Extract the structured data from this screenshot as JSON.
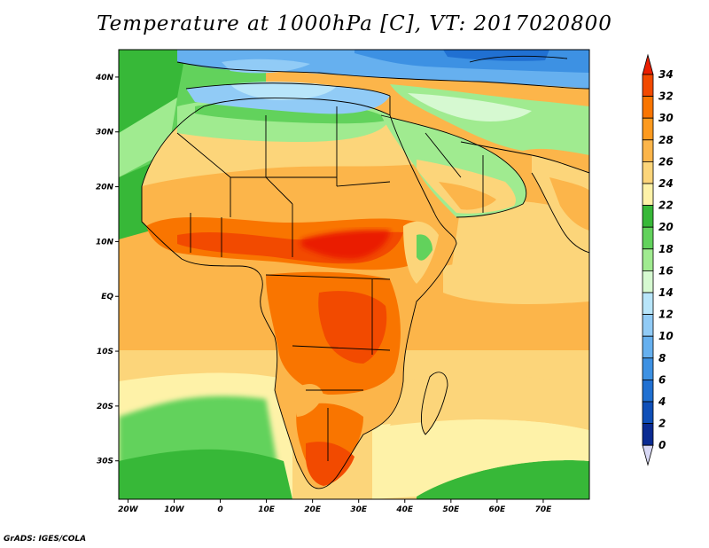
{
  "title": "Temperature at 1000hPa [C], VT: 2017020800",
  "credit": "GrADS: IGES/COLA",
  "lon_ticks": [
    "20W",
    "10W",
    "0",
    "10E",
    "20E",
    "30E",
    "40E",
    "50E",
    "60E",
    "70E"
  ],
  "lat_ticks": [
    "40N",
    "30N",
    "20N",
    "10N",
    "EQ",
    "10S",
    "20S",
    "30S"
  ],
  "colorbar": {
    "labels": [
      "34",
      "32",
      "30",
      "28",
      "26",
      "24",
      "22",
      "20",
      "18",
      "16",
      "14",
      "12",
      "10",
      "8",
      "6",
      "4",
      "2",
      "0"
    ],
    "colors": [
      "#ea1e00",
      "#f24a00",
      "#f97500",
      "#fd9a1f",
      "#fcb54a",
      "#fcd57a",
      "#fef2a8",
      "#37b838",
      "#62d25c",
      "#a0eb90",
      "#d6f9d1",
      "#b8e5fa",
      "#91cbf6",
      "#66b0ef",
      "#3d91e3",
      "#2070d2",
      "#0f4fb8",
      "#0a2b92",
      "#050f55"
    ]
  },
  "map": {
    "lon_range": [
      -22,
      80
    ],
    "lat_range": [
      -37,
      45
    ],
    "palette": {
      "sea_warm": "#fcd57a",
      "sea_mild": "#fef2a8",
      "sea_cool": "#62d25c",
      "med": "#91cbf6",
      "north": "#66b0ef"
    }
  }
}
